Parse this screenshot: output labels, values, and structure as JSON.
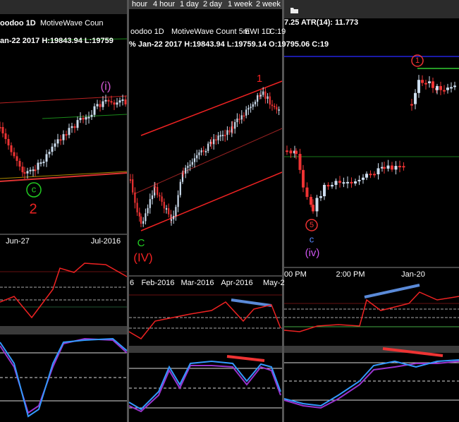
{
  "panels": [
    {
      "header": [
        "oodoo 1D",
        "MotiveWave Coun"
      ],
      "info": "an-22 2017   H:19843.94   L:19759",
      "labels": [
        "(i)",
        "c",
        "2"
      ],
      "x_labels": [
        "Jun-27",
        "Jul-2016"
      ]
    },
    {
      "tabs": [
        "hour",
        "4 hour",
        "1 day",
        "2 day",
        "1 week",
        "2 week"
      ],
      "header": [
        "oodoo 1D",
        "MotiveWave Count 5m",
        "EWI 1D",
        "C:19"
      ],
      "info": "% Jan-22 2017   H:19843.94   L:19759.14   O:19795.06   C:19",
      "labels": [
        "1",
        "C",
        "(IV)"
      ],
      "x_labels": [
        "6",
        "Feb-2016",
        "Mar-2016",
        "Apr-2016",
        "May-2"
      ]
    },
    {
      "info": "7.25   ATR(14): 11.773",
      "labels": [
        "1",
        "5",
        "c",
        "(iv)"
      ],
      "x_labels": [
        "00 PM",
        "2:00 PM",
        "Jan-20"
      ]
    }
  ]
}
